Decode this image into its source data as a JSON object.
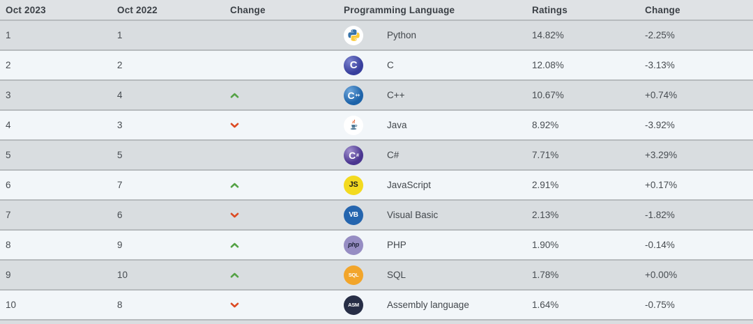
{
  "table": {
    "headers": {
      "oct2023": "Oct 2023",
      "oct2022": "Oct 2022",
      "change": "Change",
      "language": "Programming Language",
      "ratings": "Ratings",
      "ratings_change": "Change"
    },
    "rows": [
      {
        "oct2023": "1",
        "oct2022": "1",
        "move": "none",
        "icon": "python-icon",
        "language": "Python",
        "ratings": "14.82%",
        "change": "-2.25%"
      },
      {
        "oct2023": "2",
        "oct2022": "2",
        "move": "none",
        "icon": "c-icon",
        "language": "C",
        "ratings": "12.08%",
        "change": "-3.13%"
      },
      {
        "oct2023": "3",
        "oct2022": "4",
        "move": "up",
        "icon": "cpp-icon",
        "language": "C++",
        "ratings": "10.67%",
        "change": "+0.74%"
      },
      {
        "oct2023": "4",
        "oct2022": "3",
        "move": "down",
        "icon": "java-icon",
        "language": "Java",
        "ratings": "8.92%",
        "change": "-3.92%"
      },
      {
        "oct2023": "5",
        "oct2022": "5",
        "move": "none",
        "icon": "csharp-icon",
        "language": "C#",
        "ratings": "7.71%",
        "change": "+3.29%"
      },
      {
        "oct2023": "6",
        "oct2022": "7",
        "move": "up",
        "icon": "javascript-icon",
        "language": "JavaScript",
        "ratings": "2.91%",
        "change": "+0.17%"
      },
      {
        "oct2023": "7",
        "oct2022": "6",
        "move": "down",
        "icon": "visual-basic-icon",
        "language": "Visual Basic",
        "ratings": "2.13%",
        "change": "-1.82%"
      },
      {
        "oct2023": "8",
        "oct2022": "9",
        "move": "up",
        "icon": "php-icon",
        "language": "PHP",
        "ratings": "1.90%",
        "change": "-0.14%"
      },
      {
        "oct2023": "9",
        "oct2022": "10",
        "move": "up",
        "icon": "sql-icon",
        "language": "SQL",
        "ratings": "1.78%",
        "change": "+0.00%"
      },
      {
        "oct2023": "10",
        "oct2022": "8",
        "move": "down",
        "icon": "asm-icon",
        "language": "Assembly language",
        "ratings": "1.64%",
        "change": "-0.75%"
      }
    ]
  },
  "icons": {
    "python-icon": {
      "style": "python",
      "bg": "#ffffff",
      "blue": "#3873a9",
      "yellow": "#fbcb3c"
    },
    "c-icon": {
      "style": "gradient-circle",
      "text": "C",
      "bg1": "#7b82ce",
      "bg2": "#383f9d",
      "fg": "#ffffff",
      "size": 15,
      "weight": 800
    },
    "cpp-icon": {
      "style": "gradient-circle",
      "text": "C",
      "small": "++",
      "bg1": "#6ea6db",
      "bg2": "#1d63a9",
      "fg": "#ffffff",
      "size": 14,
      "weight": 800
    },
    "java-icon": {
      "style": "java",
      "bg": "#ffffff",
      "steam": "#e2531f",
      "cup": "#4e7896"
    },
    "csharp-icon": {
      "style": "gradient-circle",
      "text": "C",
      "small": "#",
      "bg1": "#a190ce",
      "bg2": "#4a3590",
      "fg": "#ffffff",
      "size": 14,
      "weight": 800
    },
    "javascript-icon": {
      "style": "circle",
      "text": "JS",
      "bg": "#f3da20",
      "fg": "#1a1a1c",
      "size": 11,
      "weight": 800
    },
    "visual-basic-icon": {
      "style": "circle",
      "text": "VB",
      "bg": "#2565ae",
      "fg": "#ffffff",
      "size": 10,
      "weight": 700
    },
    "php-icon": {
      "style": "circle",
      "text": "php",
      "bg": "#968dc3",
      "fg": "#1d2138",
      "size": 9,
      "weight": 700,
      "italic": true
    },
    "sql-icon": {
      "style": "circle",
      "text": "SQL",
      "bg": "#f2a52b",
      "fg": "#ffffff",
      "size": 7.5,
      "weight": 800
    },
    "asm-icon": {
      "style": "circle",
      "text": "ASM",
      "bg": "#272e46",
      "fg": "#ffffff",
      "size": 7.5,
      "weight": 800
    }
  },
  "colors": {
    "up_arrow": "#55a245",
    "down_arrow": "#dc4a22",
    "header_bg": "#dfe2e5",
    "row_odd_bg": "#d9dde0",
    "row_even_bg": "#f2f6f9",
    "border": "#b6babd",
    "header_text": "#3b4046",
    "body_text": "#474c51"
  }
}
